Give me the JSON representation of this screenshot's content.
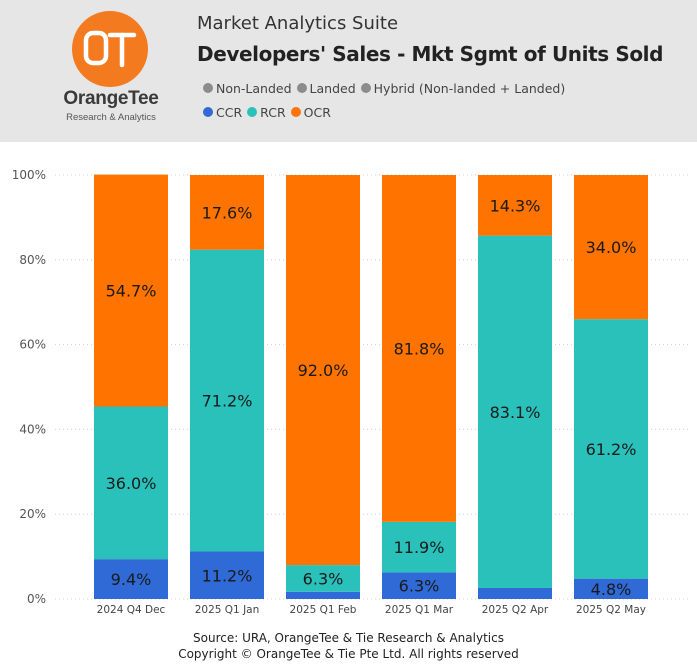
{
  "header": {
    "logo_name": "OrangeTee",
    "logo_tagline": "Research & Analytics",
    "suite_title": "Market Analytics Suite",
    "chart_title": "Developers' Sales - Mkt Sgmt of Units Sold"
  },
  "legend": {
    "row1": [
      {
        "label": "Non-Landed",
        "color": "#8c8c8c"
      },
      {
        "label": "Landed",
        "color": "#8c8c8c"
      },
      {
        "label": "Hybrid (Non-landed + Landed)",
        "color": "#8c8c8c"
      }
    ],
    "row2": [
      {
        "label": "CCR",
        "color": "#2f6ad6"
      },
      {
        "label": "RCR",
        "color": "#2bc1bb"
      },
      {
        "label": "OCR",
        "color": "#ff7300"
      }
    ]
  },
  "chart_data": {
    "type": "bar",
    "stacked": true,
    "title": "Developers' Sales - Mkt Sgmt of Units Sold",
    "categories": [
      "2024 Q4 Dec",
      "2025 Q1 Jan",
      "2025 Q1 Feb",
      "2025 Q1 Mar",
      "2025 Q2 Apr",
      "2025 Q2 May"
    ],
    "ylim": [
      0,
      100
    ],
    "y_ticks": [
      "0%",
      "20%",
      "40%",
      "60%",
      "80%",
      "100%"
    ],
    "grid": true,
    "legend_position": "top",
    "series": [
      {
        "name": "CCR",
        "color": "#2f6ad6",
        "values": [
          9.4,
          11.2,
          1.7,
          6.3,
          2.6,
          4.8
        ],
        "labels": [
          "9.4%",
          "11.2%",
          "",
          "6.3%",
          "",
          "4.8%"
        ]
      },
      {
        "name": "RCR",
        "color": "#2bc1bb",
        "values": [
          36.0,
          71.2,
          6.3,
          11.9,
          83.1,
          61.2
        ],
        "labels": [
          "36.0%",
          "71.2%",
          "6.3%",
          "11.9%",
          "83.1%",
          "61.2%"
        ]
      },
      {
        "name": "OCR",
        "color": "#ff7300",
        "values": [
          54.7,
          17.6,
          92.0,
          81.8,
          14.3,
          34.0
        ],
        "labels": [
          "54.7%",
          "17.6%",
          "92.0%",
          "81.8%",
          "14.3%",
          "34.0%"
        ]
      }
    ]
  },
  "footer": {
    "source": "Source: URA, OrangeTee & Tie Research & Analytics",
    "copyright": "Copyright © OrangeTee & Tie Pte Ltd. All rights reserved"
  }
}
